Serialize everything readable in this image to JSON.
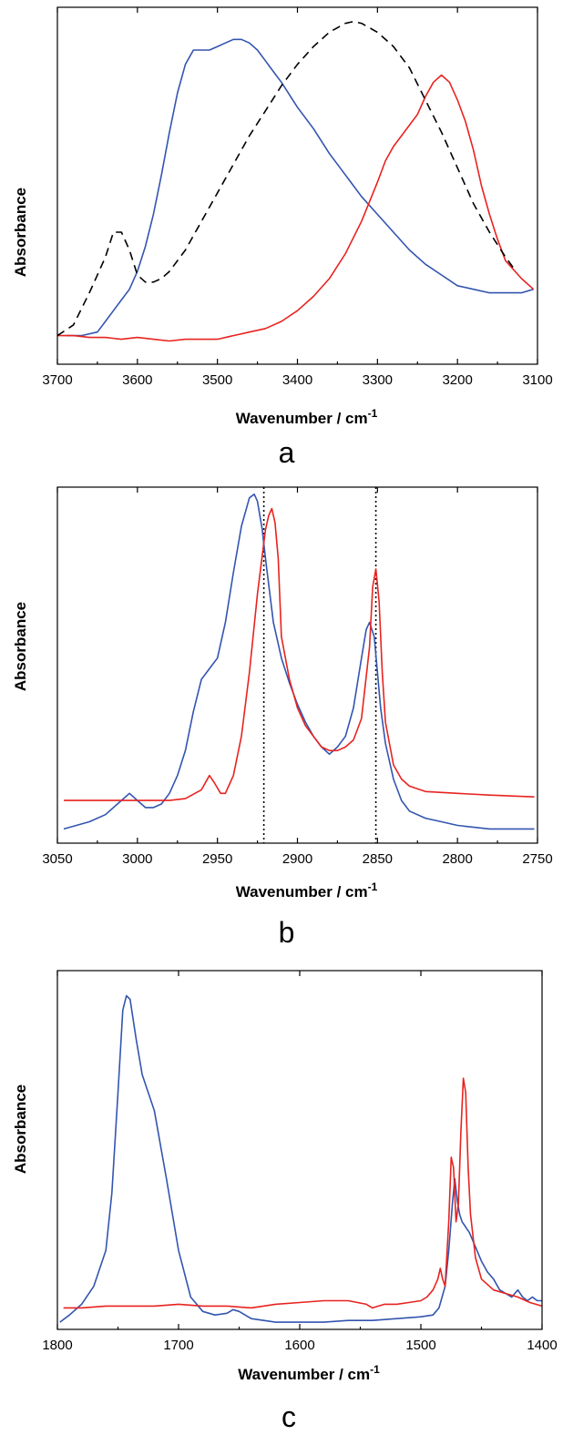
{
  "colors": {
    "blue": "#3355b0",
    "red": "#e8231f",
    "black": "#000000"
  },
  "chart_data": [
    {
      "type": "line",
      "panel_label": "a",
      "xlabel_main": "Wavenumber / cm",
      "xlabel_sup": "-1",
      "ylabel": "Absorbance",
      "xlim": [
        3700,
        3100
      ],
      "ylim": [
        0,
        1
      ],
      "xticks": [
        3700,
        3600,
        3500,
        3400,
        3300,
        3200,
        3100
      ],
      "reference_lines": [],
      "series": [
        {
          "color": "#3355b0",
          "dash": "solid",
          "x": [
            3690,
            3670,
            3650,
            3640,
            3630,
            3620,
            3610,
            3600,
            3590,
            3580,
            3570,
            3560,
            3550,
            3540,
            3530,
            3520,
            3510,
            3500,
            3490,
            3480,
            3470,
            3460,
            3450,
            3440,
            3430,
            3420,
            3400,
            3380,
            3360,
            3340,
            3320,
            3300,
            3280,
            3260,
            3240,
            3220,
            3200,
            3180,
            3160,
            3140,
            3120,
            3105
          ],
          "y": [
            0.08,
            0.08,
            0.09,
            0.12,
            0.15,
            0.18,
            0.21,
            0.26,
            0.33,
            0.42,
            0.53,
            0.65,
            0.76,
            0.84,
            0.88,
            0.88,
            0.88,
            0.89,
            0.9,
            0.91,
            0.91,
            0.9,
            0.88,
            0.85,
            0.82,
            0.79,
            0.72,
            0.66,
            0.59,
            0.53,
            0.47,
            0.42,
            0.37,
            0.32,
            0.28,
            0.25,
            0.22,
            0.21,
            0.2,
            0.2,
            0.2,
            0.21
          ]
        },
        {
          "color": "#e8231f",
          "dash": "solid",
          "x": [
            3700,
            3680,
            3660,
            3640,
            3620,
            3600,
            3580,
            3560,
            3540,
            3520,
            3500,
            3480,
            3460,
            3440,
            3420,
            3400,
            3380,
            3360,
            3340,
            3320,
            3300,
            3290,
            3280,
            3270,
            3260,
            3250,
            3240,
            3230,
            3220,
            3210,
            3200,
            3190,
            3180,
            3170,
            3160,
            3150,
            3140,
            3120,
            3105
          ],
          "y": [
            0.08,
            0.08,
            0.075,
            0.075,
            0.07,
            0.075,
            0.07,
            0.065,
            0.07,
            0.07,
            0.07,
            0.08,
            0.09,
            0.1,
            0.12,
            0.15,
            0.19,
            0.24,
            0.31,
            0.4,
            0.51,
            0.57,
            0.61,
            0.64,
            0.67,
            0.7,
            0.75,
            0.79,
            0.81,
            0.79,
            0.74,
            0.68,
            0.6,
            0.5,
            0.42,
            0.35,
            0.29,
            0.24,
            0.21
          ]
        },
        {
          "color": "#000000",
          "dash": "dashed",
          "x": [
            3700,
            3680,
            3660,
            3640,
            3630,
            3620,
            3610,
            3600,
            3590,
            3580,
            3570,
            3560,
            3540,
            3520,
            3500,
            3480,
            3460,
            3440,
            3420,
            3400,
            3380,
            3360,
            3340,
            3330,
            3320,
            3300,
            3280,
            3260,
            3240,
            3220,
            3200,
            3180,
            3160,
            3140,
            3130
          ],
          "y": [
            0.08,
            0.11,
            0.2,
            0.3,
            0.37,
            0.37,
            0.32,
            0.25,
            0.23,
            0.23,
            0.24,
            0.26,
            0.32,
            0.4,
            0.48,
            0.56,
            0.64,
            0.71,
            0.78,
            0.84,
            0.89,
            0.93,
            0.955,
            0.96,
            0.955,
            0.93,
            0.89,
            0.83,
            0.74,
            0.65,
            0.55,
            0.45,
            0.37,
            0.3,
            0.27
          ]
        }
      ]
    },
    {
      "type": "line",
      "panel_label": "b",
      "xlabel_main": "Wavenumber / cm",
      "xlabel_sup": "-1",
      "ylabel": "Absorbance",
      "xlim": [
        3050,
        2750
      ],
      "ylim": [
        0,
        1
      ],
      "xticks": [
        3050,
        3000,
        2950,
        2900,
        2850,
        2800,
        2750
      ],
      "reference_lines": [
        2921,
        2851
      ],
      "series": [
        {
          "color": "#3355b0",
          "dash": "solid",
          "x": [
            3046,
            3030,
            3020,
            3010,
            3005,
            3000,
            2995,
            2990,
            2985,
            2980,
            2975,
            2970,
            2965,
            2960,
            2955,
            2950,
            2945,
            2940,
            2935,
            2930,
            2927,
            2925,
            2922,
            2920,
            2915,
            2910,
            2905,
            2900,
            2895,
            2890,
            2885,
            2880,
            2875,
            2870,
            2865,
            2860,
            2857,
            2855,
            2852,
            2850,
            2848,
            2845,
            2840,
            2835,
            2830,
            2820,
            2810,
            2800,
            2780,
            2760,
            2752
          ],
          "y": [
            0.04,
            0.06,
            0.08,
            0.12,
            0.14,
            0.12,
            0.1,
            0.1,
            0.11,
            0.14,
            0.19,
            0.26,
            0.37,
            0.46,
            0.49,
            0.52,
            0.62,
            0.76,
            0.89,
            0.97,
            0.98,
            0.96,
            0.88,
            0.8,
            0.62,
            0.52,
            0.45,
            0.39,
            0.34,
            0.3,
            0.27,
            0.25,
            0.27,
            0.3,
            0.38,
            0.52,
            0.6,
            0.62,
            0.58,
            0.48,
            0.38,
            0.28,
            0.18,
            0.12,
            0.09,
            0.07,
            0.06,
            0.05,
            0.04,
            0.04,
            0.04
          ]
        },
        {
          "color": "#e8231f",
          "dash": "solid",
          "x": [
            3046,
            3020,
            3000,
            2990,
            2980,
            2970,
            2960,
            2955,
            2952,
            2948,
            2945,
            2940,
            2935,
            2930,
            2925,
            2920,
            2918,
            2916,
            2914,
            2912,
            2910,
            2905,
            2900,
            2895,
            2890,
            2885,
            2880,
            2875,
            2870,
            2865,
            2860,
            2855,
            2853,
            2851,
            2849,
            2847,
            2845,
            2840,
            2835,
            2830,
            2820,
            2800,
            2780,
            2752
          ],
          "y": [
            0.12,
            0.12,
            0.12,
            0.12,
            0.12,
            0.125,
            0.15,
            0.19,
            0.17,
            0.14,
            0.14,
            0.19,
            0.3,
            0.48,
            0.7,
            0.88,
            0.92,
            0.94,
            0.9,
            0.8,
            0.58,
            0.46,
            0.38,
            0.33,
            0.3,
            0.27,
            0.26,
            0.26,
            0.27,
            0.29,
            0.35,
            0.55,
            0.72,
            0.77,
            0.68,
            0.48,
            0.34,
            0.22,
            0.18,
            0.16,
            0.145,
            0.14,
            0.135,
            0.13
          ]
        }
      ]
    },
    {
      "type": "line",
      "panel_label": "c",
      "xlabel_main": "Wavenumber / cm",
      "xlabel_sup": "-1",
      "ylabel": "Absorbance",
      "xlim": [
        1800,
        1400
      ],
      "ylim": [
        0,
        1
      ],
      "xticks": [
        1800,
        1700,
        1600,
        1500,
        1400
      ],
      "reference_lines": [],
      "series": [
        {
          "color": "#3355b0",
          "dash": "solid",
          "x": [
            1798,
            1790,
            1780,
            1770,
            1760,
            1755,
            1750,
            1746,
            1743,
            1740,
            1735,
            1730,
            1720,
            1710,
            1700,
            1690,
            1680,
            1670,
            1660,
            1655,
            1650,
            1640,
            1620,
            1600,
            1580,
            1560,
            1540,
            1520,
            1500,
            1490,
            1485,
            1480,
            1477,
            1474,
            1472,
            1470,
            1468,
            1466,
            1464,
            1462,
            1460,
            1455,
            1450,
            1445,
            1440,
            1435,
            1430,
            1425,
            1420,
            1416,
            1412,
            1408,
            1404,
            1400
          ],
          "y": [
            0.02,
            0.04,
            0.07,
            0.12,
            0.22,
            0.38,
            0.66,
            0.89,
            0.93,
            0.92,
            0.81,
            0.71,
            0.61,
            0.42,
            0.22,
            0.09,
            0.05,
            0.04,
            0.045,
            0.055,
            0.05,
            0.03,
            0.02,
            0.02,
            0.02,
            0.025,
            0.025,
            0.03,
            0.035,
            0.04,
            0.06,
            0.12,
            0.22,
            0.35,
            0.42,
            0.36,
            0.32,
            0.3,
            0.29,
            0.28,
            0.27,
            0.23,
            0.19,
            0.16,
            0.14,
            0.11,
            0.1,
            0.09,
            0.11,
            0.09,
            0.08,
            0.09,
            0.08,
            0.08
          ]
        },
        {
          "color": "#e8231f",
          "dash": "solid",
          "x": [
            1795,
            1780,
            1760,
            1740,
            1720,
            1700,
            1680,
            1660,
            1640,
            1620,
            1600,
            1580,
            1560,
            1545,
            1540,
            1530,
            1520,
            1510,
            1500,
            1495,
            1490,
            1486,
            1484,
            1482,
            1480,
            1477,
            1475,
            1473,
            1471,
            1469,
            1467,
            1465,
            1463,
            1461,
            1459,
            1455,
            1450,
            1440,
            1430,
            1420,
            1410,
            1400
          ],
          "y": [
            0.06,
            0.06,
            0.065,
            0.065,
            0.065,
            0.07,
            0.065,
            0.065,
            0.06,
            0.07,
            0.075,
            0.08,
            0.08,
            0.07,
            0.06,
            0.07,
            0.07,
            0.075,
            0.08,
            0.09,
            0.11,
            0.14,
            0.17,
            0.14,
            0.12,
            0.3,
            0.48,
            0.45,
            0.3,
            0.35,
            0.55,
            0.7,
            0.66,
            0.45,
            0.32,
            0.2,
            0.14,
            0.11,
            0.1,
            0.09,
            0.075,
            0.065
          ]
        }
      ]
    }
  ]
}
